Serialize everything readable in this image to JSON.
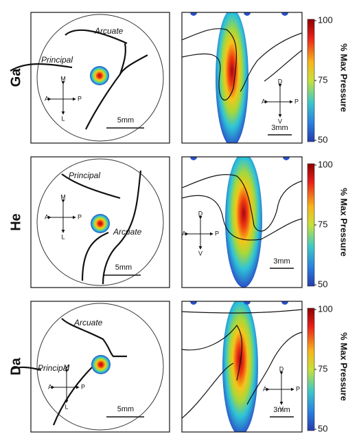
{
  "rows": [
    {
      "label": "Ga",
      "left": {
        "sulci": [
          "Arcuate",
          "Principal"
        ],
        "axes": {
          "up": "M",
          "left": "A",
          "right": "P",
          "down": "L"
        },
        "scale": "5mm"
      },
      "right": {
        "axes": {
          "up": "D",
          "left": "A",
          "right": "P",
          "down": "V"
        },
        "scale": "3mm"
      },
      "colorbar": {
        "ticks": [
          100,
          75,
          50
        ],
        "label": "% Max Pressure"
      }
    },
    {
      "label": "He",
      "left": {
        "sulci": [
          "Arcuate",
          "Principal"
        ],
        "axes": {
          "up": "M",
          "left": "A",
          "right": "P",
          "down": "L"
        },
        "scale": "5mm"
      },
      "right": {
        "axes": {
          "up": "D",
          "left": "A",
          "right": "P",
          "down": "V"
        },
        "scale": "3mm"
      },
      "colorbar": {
        "ticks": [
          100,
          75,
          50
        ],
        "label": "% Max Pressure"
      }
    },
    {
      "label": "Da",
      "left": {
        "sulci": [
          "Arcuate",
          "Principal"
        ],
        "axes": {
          "up": "M",
          "left": "A",
          "right": "P",
          "down": "L"
        },
        "scale": "5mm"
      },
      "right": {
        "axes": {
          "up": "D",
          "left": "A",
          "right": "P",
          "down": "V"
        },
        "scale": "3mm"
      },
      "colorbar": {
        "ticks": [
          100,
          75,
          50
        ],
        "label": "% Max Pressure"
      }
    }
  ]
}
